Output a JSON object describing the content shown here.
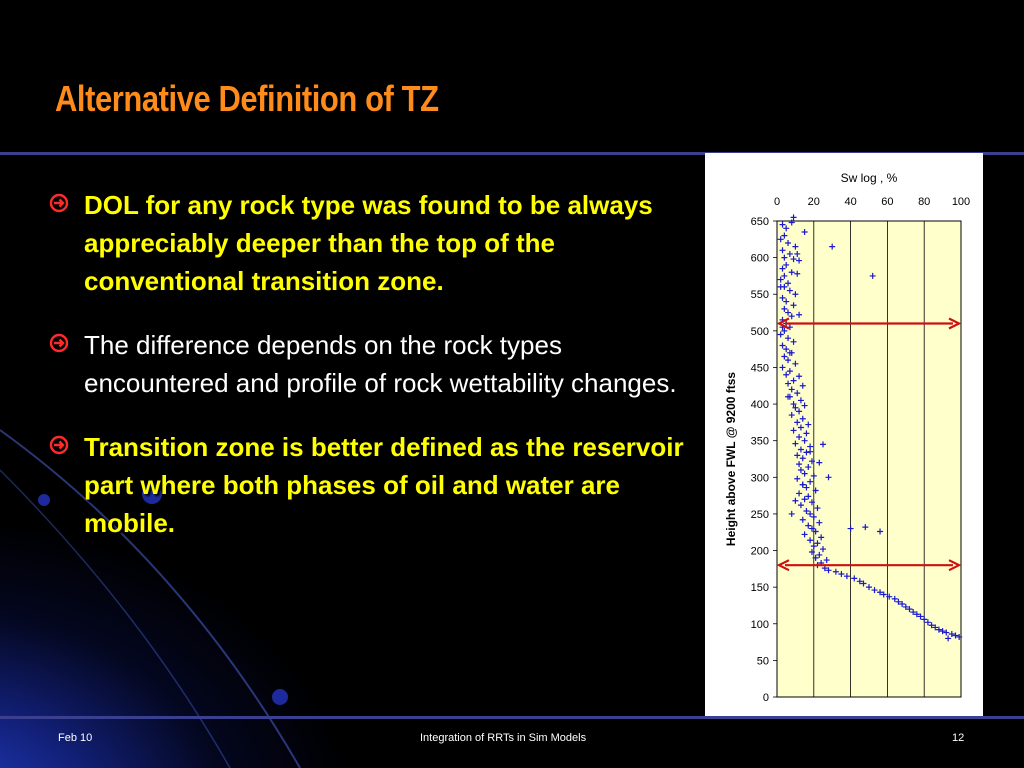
{
  "slide": {
    "title": "Alternative Definition of TZ",
    "bullets": [
      {
        "text": "DOL for any rock type was found to be always appreciably deeper than the top of the conventional transition zone.",
        "color": "#ffff00",
        "bold": true
      },
      {
        "text": "The difference depends on the rock types encountered and profile of rock wettability changes.",
        "color": "#ffffff",
        "bold": false
      },
      {
        "text": "Transition zone is better defined as the reservoir part where both phases of oil and water are mobile.",
        "color": "#ffff00",
        "bold": true
      }
    ],
    "bullet_icon": "circled-arrow-right-icon",
    "accent_color": "#ff8c1a"
  },
  "footer": {
    "date": "Feb 10",
    "center": "Integration of RRTs in Sim Models",
    "page": "12"
  },
  "chart_data": {
    "type": "scatter",
    "title": "Sw log , %",
    "xlabel": "",
    "ylabel": "Height above FWL @ 9200 ftss",
    "xlim": [
      0,
      100
    ],
    "ylim": [
      0,
      650
    ],
    "x_ticks": [
      "0",
      "20",
      "40",
      "60",
      "80",
      "100"
    ],
    "y_ticks": [
      "0",
      "50",
      "100",
      "150",
      "200",
      "250",
      "300",
      "350",
      "400",
      "450",
      "500",
      "550",
      "600",
      "650"
    ],
    "x_axis_position": "top",
    "grid": true,
    "plot_background": "#ffffcc",
    "marker_color": "#1a1acc",
    "marker": "plus",
    "series": [
      {
        "points": [
          [
            3,
            645
          ],
          [
            5,
            640
          ],
          [
            8,
            648
          ],
          [
            4,
            630
          ],
          [
            2,
            625
          ],
          [
            6,
            620
          ],
          [
            10,
            615
          ],
          [
            3,
            610
          ],
          [
            7,
            605
          ],
          [
            4,
            600
          ],
          [
            9,
            598
          ],
          [
            12,
            596
          ],
          [
            5,
            590
          ],
          [
            3,
            585
          ],
          [
            8,
            580
          ],
          [
            11,
            578
          ],
          [
            2,
            570
          ],
          [
            6,
            565
          ],
          [
            4,
            560
          ],
          [
            7,
            555
          ],
          [
            10,
            550
          ],
          [
            3,
            545
          ],
          [
            5,
            540
          ],
          [
            9,
            535
          ],
          [
            4,
            530
          ],
          [
            6,
            525
          ],
          [
            12,
            522
          ],
          [
            8,
            520
          ],
          [
            3,
            515
          ],
          [
            5,
            510
          ],
          [
            7,
            505
          ],
          [
            4,
            500
          ],
          [
            2,
            495
          ],
          [
            6,
            490
          ],
          [
            9,
            485
          ],
          [
            3,
            480
          ],
          [
            5,
            475
          ],
          [
            8,
            470
          ],
          [
            4,
            465
          ],
          [
            6,
            460
          ],
          [
            10,
            455
          ],
          [
            3,
            450
          ],
          [
            7,
            445
          ],
          [
            5,
            440
          ],
          [
            12,
            438
          ],
          [
            9,
            432
          ],
          [
            6,
            428
          ],
          [
            14,
            425
          ],
          [
            8,
            420
          ],
          [
            11,
            415
          ],
          [
            7,
            410
          ],
          [
            13,
            405
          ],
          [
            9,
            400
          ],
          [
            15,
            398
          ],
          [
            10,
            395
          ],
          [
            12,
            390
          ],
          [
            8,
            385
          ],
          [
            14,
            380
          ],
          [
            11,
            375
          ],
          [
            17,
            372
          ],
          [
            13,
            368
          ],
          [
            9,
            364
          ],
          [
            16,
            360
          ],
          [
            12,
            355
          ],
          [
            15,
            350
          ],
          [
            10,
            346
          ],
          [
            18,
            342
          ],
          [
            13,
            338
          ],
          [
            16,
            334
          ],
          [
            11,
            330
          ],
          [
            14,
            326
          ],
          [
            19,
            322
          ],
          [
            12,
            318
          ],
          [
            17,
            314
          ],
          [
            13,
            310
          ],
          [
            15,
            305
          ],
          [
            20,
            302
          ],
          [
            11,
            298
          ],
          [
            18,
            294
          ],
          [
            14,
            290
          ],
          [
            16,
            286
          ],
          [
            21,
            282
          ],
          [
            12,
            278
          ],
          [
            17,
            274
          ],
          [
            15,
            270
          ],
          [
            19,
            266
          ],
          [
            13,
            262
          ],
          [
            22,
            258
          ],
          [
            16,
            254
          ],
          [
            18,
            250
          ],
          [
            20,
            246
          ],
          [
            14,
            242
          ],
          [
            23,
            238
          ],
          [
            17,
            234
          ],
          [
            19,
            230
          ],
          [
            21,
            226
          ],
          [
            15,
            222
          ],
          [
            24,
            218
          ],
          [
            18,
            214
          ],
          [
            22,
            210
          ],
          [
            20,
            206
          ],
          [
            25,
            202
          ],
          [
            19,
            198
          ],
          [
            23,
            194
          ],
          [
            21,
            190
          ],
          [
            27,
            187
          ],
          [
            24,
            183
          ],
          [
            22,
            180
          ],
          [
            26,
            176
          ],
          [
            28,
            173
          ],
          [
            32,
            171
          ],
          [
            35,
            168
          ],
          [
            38,
            165
          ],
          [
            42,
            162
          ],
          [
            45,
            158
          ],
          [
            47,
            155
          ],
          [
            50,
            150
          ],
          [
            53,
            146
          ],
          [
            56,
            143
          ],
          [
            58,
            140
          ],
          [
            61,
            137
          ],
          [
            64,
            134
          ],
          [
            66,
            130
          ],
          [
            68,
            127
          ],
          [
            70,
            123
          ],
          [
            72,
            120
          ],
          [
            74,
            116
          ],
          [
            76,
            113
          ],
          [
            78,
            110
          ],
          [
            80,
            106
          ],
          [
            82,
            102
          ],
          [
            84,
            98
          ],
          [
            86,
            95
          ],
          [
            88,
            92
          ],
          [
            90,
            90
          ],
          [
            92,
            88
          ],
          [
            95,
            86
          ],
          [
            97,
            84
          ],
          [
            99,
            82
          ],
          [
            93,
            80
          ],
          [
            30,
            615
          ],
          [
            52,
            575
          ],
          [
            4,
            575
          ],
          [
            40,
            230
          ],
          [
            48,
            232
          ],
          [
            56,
            226
          ],
          [
            10,
            268
          ],
          [
            14,
            290
          ],
          [
            8,
            250
          ],
          [
            25,
            345
          ],
          [
            28,
            300
          ],
          [
            6,
            410
          ],
          [
            18,
            335
          ],
          [
            23,
            320
          ],
          [
            2,
            560
          ],
          [
            9,
            655
          ],
          [
            15,
            635
          ],
          [
            11,
            605
          ],
          [
            7,
            470
          ],
          [
            3,
            505
          ]
        ]
      }
    ],
    "annotations": [
      {
        "type": "double-arrow",
        "y": 510,
        "x_from": 0,
        "x_to": 100,
        "color": "#cc1111"
      },
      {
        "type": "double-arrow",
        "y": 180,
        "x_from": 0,
        "x_to": 100,
        "color": "#cc1111"
      }
    ]
  }
}
